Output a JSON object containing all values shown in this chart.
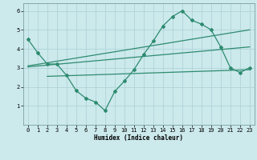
{
  "line1_x": [
    0,
    1,
    2,
    3,
    4,
    5,
    6,
    7,
    8,
    9,
    10,
    11,
    12,
    13,
    14,
    15,
    16,
    17,
    18,
    19,
    20,
    21,
    22,
    23
  ],
  "line1_y": [
    4.5,
    3.8,
    3.2,
    3.2,
    2.6,
    1.8,
    1.4,
    1.2,
    0.75,
    1.75,
    2.3,
    2.9,
    3.7,
    4.4,
    5.2,
    5.7,
    6.0,
    5.5,
    5.3,
    5.0,
    4.1,
    3.0,
    2.75,
    3.0
  ],
  "line2_x": [
    0,
    23
  ],
  "line2_y": [
    3.05,
    4.1
  ],
  "line3_x": [
    0,
    23
  ],
  "line3_y": [
    3.1,
    5.0
  ],
  "line4_x": [
    2,
    23
  ],
  "line4_y": [
    2.55,
    2.9
  ],
  "color": "#2e8b6f",
  "bg_color": "#cce9ec",
  "grid_color": "#b0d4d8",
  "xlabel": "Humidex (Indice chaleur)",
  "xlim": [
    -0.5,
    23.5
  ],
  "ylim": [
    0,
    6.4
  ],
  "yticks": [
    1,
    2,
    3,
    4,
    5,
    6
  ],
  "xticks": [
    0,
    1,
    2,
    3,
    4,
    5,
    6,
    7,
    8,
    9,
    10,
    11,
    12,
    13,
    14,
    15,
    16,
    17,
    18,
    19,
    20,
    21,
    22,
    23
  ]
}
